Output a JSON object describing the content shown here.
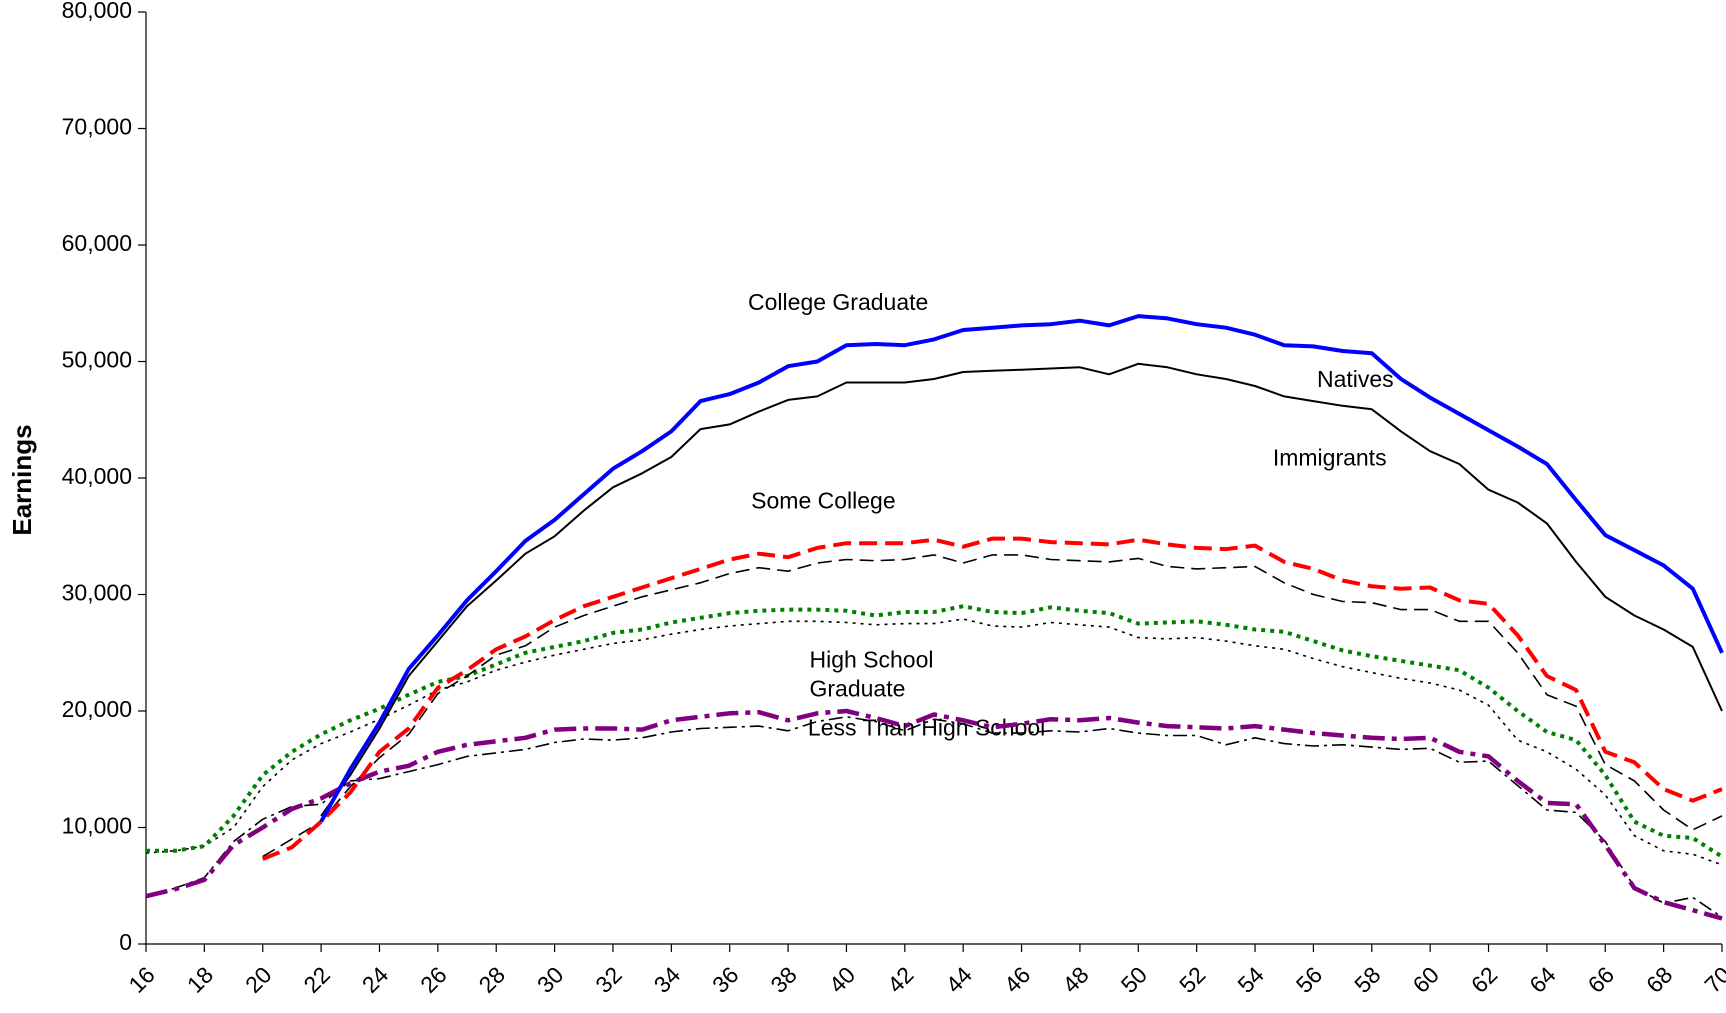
{
  "chart_data": {
    "type": "line",
    "y_label": "Earnings",
    "annotations": [
      "College Graduate",
      "Natives",
      "Immigrants",
      "Some College",
      "High School",
      "Graduate",
      "Less Than High School"
    ],
    "x": [
      16,
      17,
      18,
      19,
      20,
      21,
      22,
      23,
      24,
      25,
      26,
      27,
      28,
      29,
      30,
      31,
      32,
      33,
      34,
      35,
      36,
      37,
      38,
      39,
      40,
      41,
      42,
      43,
      44,
      45,
      46,
      47,
      48,
      49,
      50,
      51,
      52,
      53,
      54,
      55,
      56,
      57,
      58,
      59,
      60,
      61,
      62,
      63,
      64,
      65,
      66,
      67,
      68,
      69,
      70
    ],
    "xlim": [
      16,
      70
    ],
    "xticks": [
      16,
      18,
      20,
      22,
      24,
      26,
      28,
      30,
      32,
      34,
      36,
      38,
      40,
      42,
      44,
      46,
      48,
      50,
      52,
      54,
      56,
      58,
      60,
      62,
      64,
      66,
      68,
      70
    ],
    "ylim": [
      0,
      80000
    ],
    "yticks": [
      0,
      {
        "value": 10000,
        "label": "10,000"
      },
      {
        "value": 20000,
        "label": "20,000"
      },
      {
        "value": 30000,
        "label": "30,000"
      },
      {
        "value": 40000,
        "label": "40,000"
      },
      {
        "value": 50000,
        "label": "50,000"
      },
      {
        "value": 60000,
        "label": "60,000"
      },
      {
        "value": 70000,
        "label": "70,000"
      },
      {
        "value": 80000,
        "label": "80,000"
      }
    ],
    "series": [
      {
        "color": "#0000ff",
        "width": 4,
        "dash": "none",
        "values": [
          null,
          null,
          null,
          null,
          null,
          null,
          10500,
          15000,
          19000,
          23600,
          26500,
          29500,
          32000,
          34600,
          36400,
          38600,
          40800,
          42300,
          44000,
          46600,
          47200,
          48200,
          49600,
          50000,
          51400,
          51500,
          51400,
          51900,
          52700,
          52900,
          53100,
          53200,
          53500,
          53100,
          53900,
          53700,
          53200,
          52900,
          52300,
          51400,
          51300,
          50900,
          50700,
          48500,
          46900,
          45500,
          44100,
          42700,
          41200,
          38100,
          35100,
          33800,
          32500,
          30500,
          25000
        ]
      },
      {
        "color": "#000000",
        "width": 2,
        "dash": "none",
        "values": [
          null,
          null,
          null,
          null,
          null,
          null,
          11000,
          14500,
          18500,
          23000,
          26000,
          29000,
          31200,
          33500,
          35000,
          37200,
          39200,
          40400,
          41800,
          44200,
          44600,
          45700,
          46700,
          47000,
          48200,
          48200,
          48200,
          48500,
          49100,
          49200,
          49300,
          49400,
          49500,
          48900,
          49800,
          49500,
          48900,
          48500,
          47900,
          47000,
          46600,
          46200,
          45900,
          44000,
          42300,
          41200,
          39000,
          37900,
          36100,
          32800,
          29800,
          28200,
          27000,
          25500,
          20000
        ]
      },
      {
        "color": "#ff0000",
        "width": 4,
        "dash": "18 8",
        "values": [
          null,
          null,
          null,
          null,
          7300,
          8300,
          10500,
          13000,
          16500,
          18500,
          22000,
          23500,
          25300,
          26400,
          27800,
          29000,
          29800,
          30600,
          31400,
          32200,
          33000,
          33500,
          33200,
          34000,
          34400,
          34400,
          34400,
          34700,
          34100,
          34800,
          34800,
          34500,
          34400,
          34300,
          34700,
          34300,
          34000,
          33900,
          34200,
          32800,
          32200,
          31200,
          30700,
          30500,
          30600,
          29500,
          29200,
          26500,
          23000,
          21800,
          16500,
          15600,
          13300,
          12300,
          13300
        ]
      },
      {
        "color": "#000000",
        "width": 1.6,
        "dash": "14 7",
        "values": [
          null,
          null,
          null,
          null,
          7500,
          9000,
          10500,
          13500,
          16000,
          18000,
          21500,
          23000,
          24800,
          25600,
          27200,
          28200,
          29000,
          29800,
          30400,
          31000,
          31800,
          32300,
          32000,
          32700,
          33000,
          32900,
          33000,
          33400,
          32700,
          33400,
          33400,
          33000,
          32900,
          32800,
          33100,
          32400,
          32200,
          32300,
          32400,
          31000,
          30000,
          29400,
          29300,
          28700,
          28700,
          27700,
          27700,
          25000,
          21400,
          20400,
          15400,
          14000,
          11500,
          9800,
          11000
        ]
      },
      {
        "color": "#008000",
        "width": 4,
        "dash": "4 5",
        "values": [
          8000,
          8000,
          8400,
          11000,
          14500,
          16500,
          18000,
          19200,
          20200,
          21400,
          22500,
          23000,
          24000,
          25000,
          25500,
          26000,
          26700,
          27000,
          27600,
          28000,
          28400,
          28600,
          28700,
          28700,
          28600,
          28200,
          28500,
          28500,
          29000,
          28500,
          28400,
          28900,
          28600,
          28400,
          27500,
          27600,
          27700,
          27400,
          27000,
          26800,
          26000,
          25200,
          24700,
          24300,
          23900,
          23500,
          22000,
          20000,
          18200,
          17500,
          14500,
          10500,
          9300,
          9100,
          7500
        ]
      },
      {
        "color": "#000000",
        "width": 1.6,
        "dash": "3 5",
        "values": [
          7800,
          8000,
          8400,
          10000,
          13500,
          15800,
          17200,
          18200,
          19300,
          20500,
          21800,
          22500,
          23500,
          24200,
          24800,
          25300,
          25800,
          26100,
          26600,
          27000,
          27300,
          27500,
          27700,
          27700,
          27600,
          27400,
          27500,
          27500,
          27900,
          27300,
          27200,
          27600,
          27400,
          27200,
          26300,
          26200,
          26300,
          26000,
          25600,
          25300,
          24500,
          23800,
          23300,
          22800,
          22400,
          21800,
          20500,
          17500,
          16500,
          15000,
          12800,
          9300,
          8000,
          7700,
          6800
        ]
      },
      {
        "color": "#800080",
        "width": 4.5,
        "dash": "22 7 5 7",
        "values": [
          4100,
          4700,
          5500,
          8500,
          10000,
          11600,
          12500,
          13800,
          14800,
          15300,
          16500,
          17100,
          17400,
          17700,
          18400,
          18500,
          18500,
          18400,
          19200,
          19500,
          19800,
          19900,
          19200,
          19800,
          20000,
          19400,
          18700,
          19700,
          19200,
          18600,
          18900,
          19300,
          19200,
          19400,
          19000,
          18700,
          18600,
          18500,
          18700,
          18400,
          18100,
          17900,
          17700,
          17600,
          17700,
          16500,
          16100,
          14000,
          12100,
          12000,
          8500,
          4800,
          3600,
          2900,
          2200
        ]
      },
      {
        "color": "#000000",
        "width": 1.6,
        "dash": "14 5 3 5",
        "values": [
          4000,
          4800,
          5700,
          8800,
          10700,
          11800,
          12000,
          14000,
          14200,
          14800,
          15400,
          16100,
          16400,
          16700,
          17300,
          17600,
          17500,
          17700,
          18200,
          18500,
          18600,
          18700,
          18300,
          19100,
          19500,
          19100,
          18300,
          19300,
          18900,
          18100,
          18100,
          18300,
          18200,
          18500,
          18100,
          17900,
          17900,
          17100,
          17700,
          17200,
          17000,
          17100,
          16900,
          16700,
          16800,
          15600,
          15700,
          13600,
          11500,
          11300,
          8800,
          4900,
          3500,
          4000,
          2300
        ]
      }
    ]
  }
}
